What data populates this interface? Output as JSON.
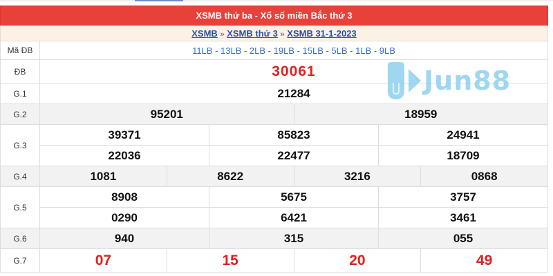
{
  "header": {
    "title": "XSMB thứ ba - Xổ số miền Bắc thứ 3"
  },
  "breadcrumb": {
    "items": [
      "XSMB",
      "XSMB thứ 3",
      "XSMB 31-1-2023"
    ],
    "separator": "»"
  },
  "rows": {
    "ma_db": {
      "label": "Mã ĐB",
      "value": "11LB - 13LB - 2LB - 19LB - 15LB - 5LB - 1LB - 9LB"
    },
    "db": {
      "label": "ĐB",
      "values": [
        "30061"
      ]
    },
    "g1": {
      "label": "G.1",
      "values": [
        "21284"
      ]
    },
    "g2": {
      "label": "G.2",
      "values": [
        "95201",
        "18959"
      ]
    },
    "g3": {
      "label": "G.3",
      "values": [
        "39371",
        "85823",
        "24941",
        "22036",
        "22477",
        "18709"
      ]
    },
    "g4": {
      "label": "G.4",
      "values": [
        "1081",
        "8622",
        "3216",
        "0868"
      ]
    },
    "g5": {
      "label": "G.5",
      "values": [
        "8908",
        "5675",
        "3757",
        "0290",
        "6421",
        "3461"
      ]
    },
    "g6": {
      "label": "G.6",
      "values": [
        "940",
        "315",
        "055"
      ]
    },
    "g7": {
      "label": "G.7",
      "values": [
        "07",
        "15",
        "20",
        "49"
      ]
    }
  },
  "watermark": {
    "text": "Jun88",
    "icon": "jun88-logo-icon"
  },
  "colors": {
    "header": "#e8413a",
    "special": "#e0201e",
    "link": "#2a4fb5",
    "code": "#3a6cc4",
    "watermark": "#8fd0ee"
  }
}
